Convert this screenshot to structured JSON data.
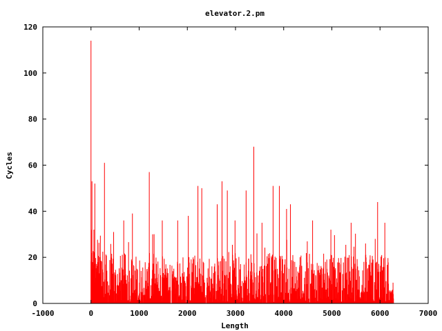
{
  "chart_data": {
    "type": "bar",
    "title": "elevator.2.pm",
    "xlabel": "Length",
    "ylabel": "Cycles",
    "xlim": [
      -1000,
      7000
    ],
    "ylim": [
      0,
      120
    ],
    "xticks": [
      -1000,
      0,
      1000,
      2000,
      3000,
      4000,
      5000,
      6000,
      7000
    ],
    "yticks": [
      0,
      20,
      40,
      60,
      80,
      100,
      120
    ],
    "bar_color": "#ff0000",
    "grid": false,
    "legend": "none",
    "data_range": [
      0,
      6280
    ],
    "peaks": [
      {
        "x": 0,
        "y": 114
      },
      {
        "x": 20,
        "y": 53
      },
      {
        "x": 80,
        "y": 52
      },
      {
        "x": 280,
        "y": 61
      },
      {
        "x": 470,
        "y": 31
      },
      {
        "x": 680,
        "y": 36
      },
      {
        "x": 860,
        "y": 39
      },
      {
        "x": 1210,
        "y": 57
      },
      {
        "x": 1280,
        "y": 30
      },
      {
        "x": 1480,
        "y": 36
      },
      {
        "x": 1800,
        "y": 36
      },
      {
        "x": 2020,
        "y": 38
      },
      {
        "x": 2220,
        "y": 51
      },
      {
        "x": 2300,
        "y": 50
      },
      {
        "x": 2620,
        "y": 43
      },
      {
        "x": 2720,
        "y": 53
      },
      {
        "x": 2830,
        "y": 49
      },
      {
        "x": 2990,
        "y": 36
      },
      {
        "x": 3220,
        "y": 49
      },
      {
        "x": 3380,
        "y": 68
      },
      {
        "x": 3550,
        "y": 35
      },
      {
        "x": 3780,
        "y": 51
      },
      {
        "x": 3910,
        "y": 51
      },
      {
        "x": 4060,
        "y": 41
      },
      {
        "x": 4140,
        "y": 43
      },
      {
        "x": 4600,
        "y": 36
      },
      {
        "x": 4980,
        "y": 32
      },
      {
        "x": 5400,
        "y": 35
      },
      {
        "x": 5700,
        "y": 26
      },
      {
        "x": 5900,
        "y": 28
      },
      {
        "x": 5950,
        "y": 44
      },
      {
        "x": 6100,
        "y": 35
      },
      {
        "x": 6270,
        "y": 9
      }
    ]
  }
}
